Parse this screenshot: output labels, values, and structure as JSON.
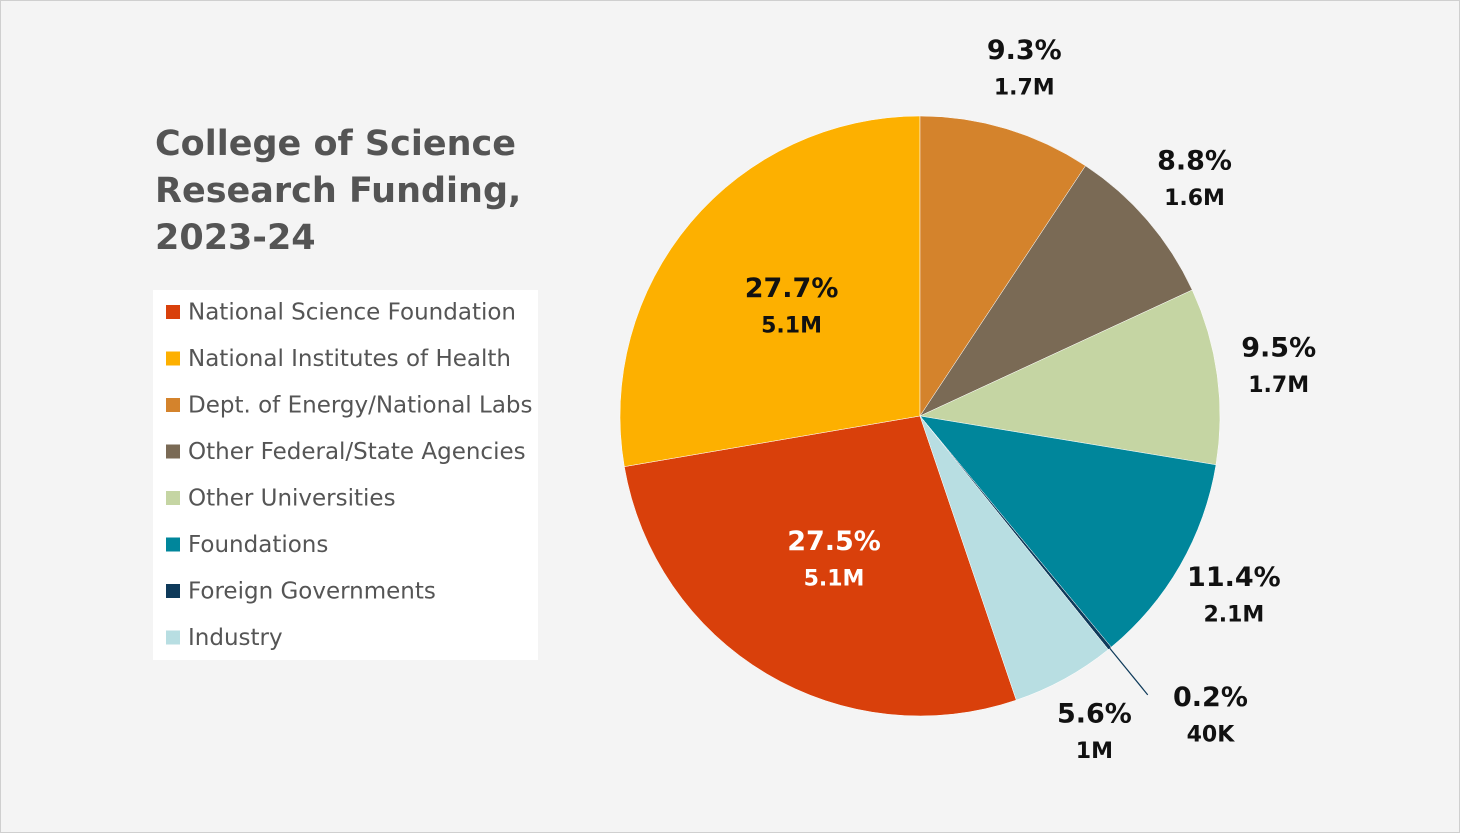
{
  "chart_data": {
    "type": "pie",
    "title": "College of Science Research Funding, 2023-24",
    "categories": [
      "National Science Foundation",
      "National Institutes of Health",
      "Dept. of Energy/National Labs",
      "Other Federal/State Agencies",
      "Other Universities",
      "Foundations",
      "Foreign Governments",
      "Industry"
    ],
    "values": [
      27.5,
      27.7,
      9.3,
      8.8,
      9.5,
      11.4,
      0.2,
      5.6
    ],
    "value_labels": [
      "27.5%",
      "27.7%",
      "9.3%",
      "8.8%",
      "9.5%",
      "11.4%",
      "0.2%",
      "5.6%"
    ],
    "amount_labels": [
      "5.1M",
      "5.1M",
      "1.7M",
      "1.6M",
      "1.7M",
      "2.1M",
      "40K",
      "1M"
    ],
    "colors": [
      "#d9400b",
      "#fdb000",
      "#d4832c",
      "#7a6a55",
      "#c5d5a3",
      "#00869b",
      "#0e3a5a",
      "#b8dee2"
    ],
    "legend": "left"
  }
}
